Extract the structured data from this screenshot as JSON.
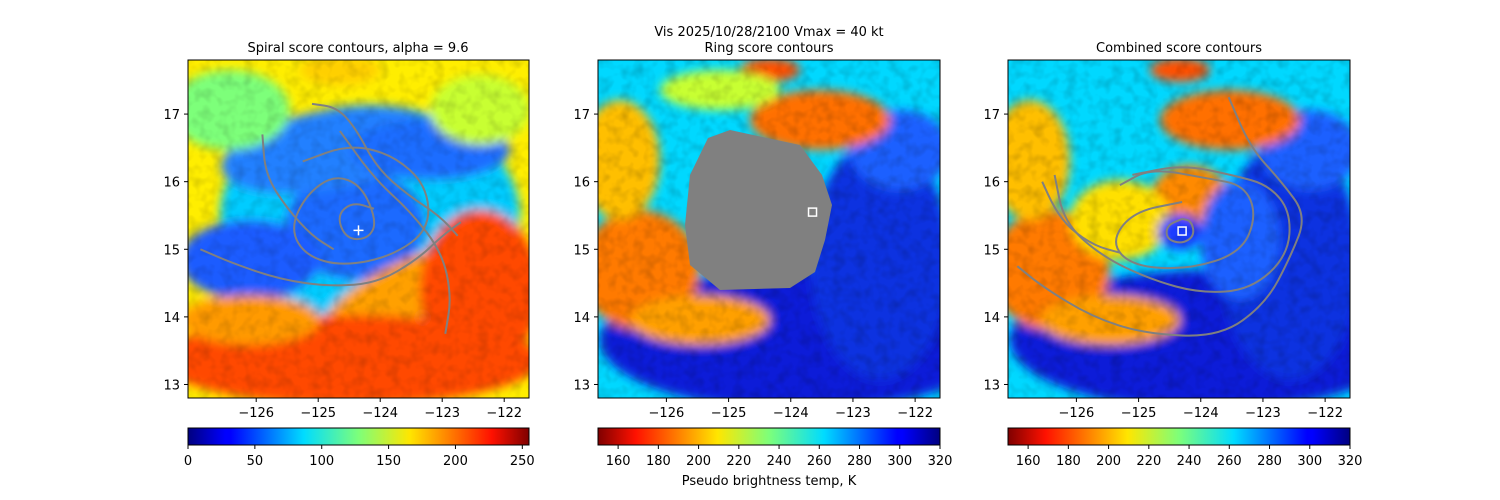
{
  "figure": {
    "suptitle": "Vis  2025/10/28/2100    Vmax = 40 kt",
    "colorbar_label": "Pseudo brightness temp, K"
  },
  "chart_data": [
    {
      "type": "heatmap",
      "title": "Spiral score contours, alpha =  9.6",
      "xlim": [
        -127.1,
        -121.6
      ],
      "ylim": [
        12.8,
        17.8
      ],
      "xticks": [
        -126,
        -125,
        -124,
        -123,
        -122
      ],
      "yticks": [
        13,
        14,
        15,
        16,
        17
      ],
      "xtick_labels": [
        "−126",
        "−125",
        "−124",
        "−123",
        "−122"
      ],
      "ytick_labels": [
        "13",
        "14",
        "15",
        "16",
        "17"
      ],
      "colormap": "jet",
      "colormap_reversed": false,
      "colorbar_range": [
        0,
        255
      ],
      "colorbar_ticks": [
        0,
        50,
        100,
        150,
        200,
        250
      ],
      "colorbar_tick_labels": [
        "0",
        "50",
        "100",
        "150",
        "200",
        "250"
      ],
      "center_marker": {
        "lon": -124.35,
        "lat": 15.28,
        "symbol": "+"
      },
      "contours": [
        {
          "name": "spiral-contour-inner",
          "points": [
            [
              -124.1,
              15.6
            ],
            [
              -124.45,
              15.7
            ],
            [
              -124.7,
              15.5
            ],
            [
              -124.55,
              15.15
            ],
            [
              -124.2,
              15.15
            ],
            [
              -124.05,
              15.4
            ],
            [
              -124.3,
              15.95
            ],
            [
              -124.75,
              16.1
            ],
            [
              -125.2,
              15.8
            ],
            [
              -125.45,
              15.3
            ],
            [
              -125.2,
              14.9
            ],
            [
              -124.6,
              14.75
            ],
            [
              -123.8,
              14.9
            ],
            [
              -123.2,
              15.3
            ],
            [
              -123.25,
              15.95
            ],
            [
              -123.8,
              16.4
            ],
            [
              -124.5,
              16.55
            ],
            [
              -125.25,
              16.3
            ]
          ]
        },
        {
          "name": "spiral-contour-arm",
          "points": [
            [
              -124.65,
              16.75
            ],
            [
              -124.1,
              16.05
            ],
            [
              -123.5,
              15.55
            ],
            [
              -123.0,
              14.95
            ],
            [
              -122.85,
              14.3
            ],
            [
              -122.95,
              13.75
            ]
          ]
        },
        {
          "name": "spiral-contour-left",
          "points": [
            [
              -125.9,
              16.7
            ],
            [
              -125.85,
              16.1
            ],
            [
              -125.5,
              15.6
            ],
            [
              -125.1,
              15.2
            ],
            [
              -124.75,
              15.0
            ]
          ]
        },
        {
          "name": "spiral-contour-outer",
          "points": [
            [
              -126.9,
              15.0
            ],
            [
              -126.4,
              14.8
            ],
            [
              -125.6,
              14.55
            ],
            [
              -124.8,
              14.45
            ],
            [
              -124.05,
              14.5
            ],
            [
              -123.4,
              14.85
            ],
            [
              -123.0,
              15.2
            ],
            [
              -122.7,
              15.4
            ]
          ]
        },
        {
          "name": "spiral-contour-top",
          "points": [
            [
              -125.1,
              17.15
            ],
            [
              -124.7,
              17.1
            ],
            [
              -124.4,
              16.8
            ],
            [
              -124.05,
              16.2
            ],
            [
              -123.55,
              15.8
            ],
            [
              -123.05,
              15.5
            ],
            [
              -122.75,
              15.2
            ]
          ]
        }
      ]
    },
    {
      "type": "heatmap",
      "title": "Ring score contours",
      "xlim": [
        -127.1,
        -121.6
      ],
      "ylim": [
        12.8,
        17.8
      ],
      "xticks": [
        -126,
        -125,
        -124,
        -123,
        -122
      ],
      "yticks": [
        13,
        14,
        15,
        16,
        17
      ],
      "xtick_labels": [
        "−126",
        "−125",
        "−124",
        "−123",
        "−122"
      ],
      "ytick_labels": [
        "13",
        "14",
        "15",
        "16",
        "17"
      ],
      "colormap": "jet",
      "colormap_reversed": true,
      "colorbar_range": [
        150,
        320
      ],
      "colorbar_ticks": [
        160,
        180,
        200,
        220,
        240,
        260,
        280,
        300,
        320
      ],
      "colorbar_tick_labels": [
        "160",
        "180",
        "200",
        "220",
        "240",
        "260",
        "280",
        "300",
        "320"
      ],
      "center_marker": {
        "lon": -123.65,
        "lat": 15.55,
        "symbol": "square"
      },
      "masked_region": {
        "color": "#808080",
        "label": "search area mask"
      },
      "contours": []
    },
    {
      "type": "heatmap",
      "title": "Combined score contours",
      "xlim": [
        -127.1,
        -121.6
      ],
      "ylim": [
        12.8,
        17.8
      ],
      "xticks": [
        -126,
        -125,
        -124,
        -123,
        -122
      ],
      "yticks": [
        13,
        14,
        15,
        16,
        17
      ],
      "xtick_labels": [
        "−126",
        "−125",
        "−124",
        "−123",
        "−122"
      ],
      "ytick_labels": [
        "13",
        "14",
        "15",
        "16",
        "17"
      ],
      "colormap": "jet",
      "colormap_reversed": true,
      "colorbar_range": [
        150,
        320
      ],
      "colorbar_ticks": [
        160,
        180,
        200,
        220,
        240,
        260,
        280,
        300,
        320
      ],
      "colorbar_tick_labels": [
        "160",
        "180",
        "200",
        "220",
        "240",
        "260",
        "280",
        "300",
        "320"
      ],
      "center_marker": {
        "lon": -124.3,
        "lat": 15.27,
        "symbol": "square"
      },
      "contours": [
        {
          "name": "combined-contour-inner",
          "points": [
            [
              -124.3,
              15.45
            ],
            [
              -124.55,
              15.35
            ],
            [
              -124.55,
              15.15
            ],
            [
              -124.3,
              15.08
            ],
            [
              -124.1,
              15.2
            ],
            [
              -124.15,
              15.42
            ],
            [
              -124.3,
              15.45
            ]
          ]
        },
        {
          "name": "combined-contour-mid",
          "points": [
            [
              -124.3,
              15.7
            ],
            [
              -125.1,
              15.55
            ],
            [
              -125.45,
              15.1
            ],
            [
              -125.1,
              14.75
            ],
            [
              -124.2,
              14.7
            ],
            [
              -123.35,
              14.95
            ],
            [
              -123.1,
              15.5
            ],
            [
              -123.3,
              15.95
            ],
            [
              -123.9,
              16.05
            ],
            [
              -124.8,
              16.2
            ],
            [
              -125.3,
              15.95
            ]
          ]
        },
        {
          "name": "combined-contour-outer",
          "points": [
            [
              -126.35,
              16.1
            ],
            [
              -126.2,
              15.4
            ],
            [
              -125.6,
              14.9
            ],
            [
              -124.8,
              14.55
            ],
            [
              -124.0,
              14.35
            ],
            [
              -123.2,
              14.4
            ],
            [
              -122.6,
              14.9
            ],
            [
              -122.55,
              15.55
            ],
            [
              -122.9,
              15.95
            ],
            [
              -123.5,
              16.1
            ],
            [
              -124.3,
              16.25
            ],
            [
              -125.1,
              16.1
            ]
          ]
        },
        {
          "name": "combined-contour-big",
          "points": [
            [
              -123.55,
              17.25
            ],
            [
              -123.2,
              16.5
            ],
            [
              -122.7,
              16.0
            ],
            [
              -122.3,
              15.5
            ],
            [
              -122.55,
              14.9
            ],
            [
              -122.95,
              14.2
            ],
            [
              -123.7,
              13.7
            ],
            [
              -124.9,
              13.75
            ],
            [
              -125.75,
              14.0
            ],
            [
              -126.55,
              14.45
            ],
            [
              -126.95,
              14.75
            ]
          ]
        },
        {
          "name": "combined-contour-left",
          "points": [
            [
              -126.55,
              16.0
            ],
            [
              -126.35,
              15.6
            ],
            [
              -126.1,
              15.3
            ],
            [
              -125.7,
              15.05
            ],
            [
              -125.3,
              14.95
            ]
          ]
        }
      ]
    }
  ]
}
